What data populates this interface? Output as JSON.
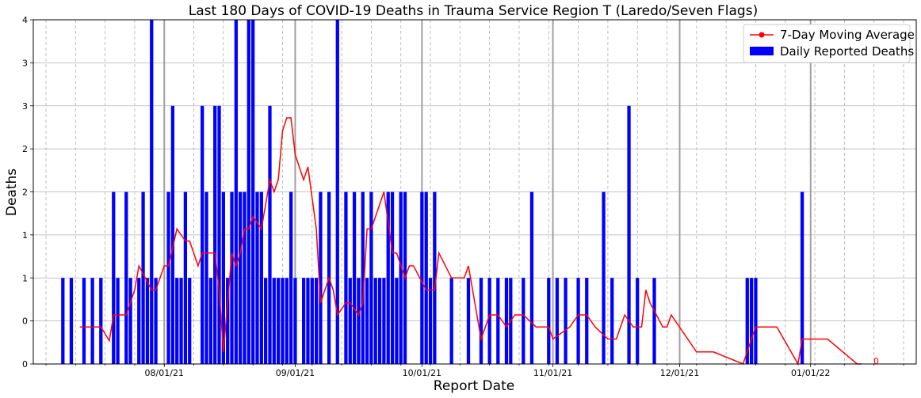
{
  "chart_data": {
    "type": "bar",
    "title": "Last 180 Days of COVID-19 Deaths in Trauma Service Region T (Laredo/Seven Flags)",
    "xlabel": "Report Date",
    "ylabel": "Deaths",
    "ylim": [
      0,
      4
    ],
    "xlim": [
      "2021-07-01",
      "2022-01-26"
    ],
    "yticks": [
      0,
      0.5,
      1,
      1.5,
      2,
      2.5,
      3,
      3.5,
      4
    ],
    "ytick_labels": [
      "0",
      "0",
      "1",
      "1",
      "2",
      "2",
      "3",
      "3",
      "4"
    ],
    "xticks": [
      "2021-08-01",
      "2021-09-01",
      "2021-10-01",
      "2021-11-01",
      "2021-12-01",
      "2022-01-01"
    ],
    "xtick_labels": [
      "08/01/21",
      "09/01/21",
      "10/01/21",
      "11/01/21",
      "12/01/21",
      "01/01/22"
    ],
    "grid": true,
    "legend_position": "top-right",
    "last_value_label": "0",
    "series": [
      {
        "name": "Daily Reported Deaths",
        "kind": "bar",
        "color": "#0000ff",
        "dates": [
          "2021-07-08",
          "2021-07-10",
          "2021-07-13",
          "2021-07-15",
          "2021-07-17",
          "2021-07-20",
          "2021-07-21",
          "2021-07-23",
          "2021-07-24",
          "2021-07-26",
          "2021-07-27",
          "2021-07-28",
          "2021-07-29",
          "2021-07-30",
          "2021-08-02",
          "2021-08-03",
          "2021-08-04",
          "2021-08-05",
          "2021-08-06",
          "2021-08-07",
          "2021-08-10",
          "2021-08-11",
          "2021-08-12",
          "2021-08-13",
          "2021-08-14",
          "2021-08-15",
          "2021-08-16",
          "2021-08-17",
          "2021-08-18",
          "2021-08-19",
          "2021-08-20",
          "2021-08-21",
          "2021-08-22",
          "2021-08-23",
          "2021-08-24",
          "2021-08-25",
          "2021-08-26",
          "2021-08-27",
          "2021-08-28",
          "2021-08-29",
          "2021-08-30",
          "2021-08-31",
          "2021-09-01",
          "2021-09-03",
          "2021-09-04",
          "2021-09-05",
          "2021-09-06",
          "2021-09-07",
          "2021-09-09",
          "2021-09-11",
          "2021-09-13",
          "2021-09-14",
          "2021-09-15",
          "2021-09-16",
          "2021-09-17",
          "2021-09-18",
          "2021-09-19",
          "2021-09-20",
          "2021-09-21",
          "2021-09-22",
          "2021-09-23",
          "2021-09-24",
          "2021-09-25",
          "2021-09-26",
          "2021-09-27",
          "2021-10-01",
          "2021-10-02",
          "2021-10-03",
          "2021-10-04",
          "2021-10-08",
          "2021-10-12",
          "2021-10-15",
          "2021-10-17",
          "2021-10-19",
          "2021-10-21",
          "2021-10-22",
          "2021-10-25",
          "2021-10-27",
          "2021-10-31",
          "2021-11-02",
          "2021-11-04",
          "2021-11-07",
          "2021-11-09",
          "2021-11-13",
          "2021-11-15",
          "2021-11-19",
          "2021-11-21",
          "2021-11-25",
          "2021-12-17",
          "2021-12-18",
          "2021-12-19",
          "2021-12-30"
        ],
        "values": [
          1,
          1,
          1,
          1,
          1,
          2,
          1,
          2,
          1,
          1,
          2,
          1,
          4,
          1,
          2,
          3,
          1,
          1,
          2,
          1,
          3,
          2,
          1,
          3,
          3,
          2,
          1,
          2,
          4,
          2,
          2,
          4,
          4,
          2,
          2,
          1,
          3,
          1,
          1,
          1,
          1,
          2,
          1,
          1,
          1,
          1,
          1,
          2,
          2,
          4,
          2,
          1,
          2,
          1,
          2,
          1,
          2,
          1,
          1,
          1,
          2,
          2,
          1,
          2,
          2,
          2,
          2,
          1,
          2,
          1,
          1,
          1,
          1,
          1,
          1,
          1,
          1,
          2,
          1,
          1,
          1,
          1,
          1,
          2,
          1,
          3,
          1,
          1,
          1,
          1,
          1,
          2
        ]
      },
      {
        "name": "7-Day Moving Average",
        "kind": "line",
        "color": "#ff0000",
        "dates": [
          "2021-07-12",
          "2021-07-17",
          "2021-07-19",
          "2021-07-20",
          "2021-07-23",
          "2021-07-25",
          "2021-07-26",
          "2021-07-29",
          "2021-07-30",
          "2021-08-01",
          "2021-08-02",
          "2021-08-04",
          "2021-08-06",
          "2021-08-07",
          "2021-08-09",
          "2021-08-10",
          "2021-08-13",
          "2021-08-14",
          "2021-08-15",
          "2021-08-17",
          "2021-08-18",
          "2021-08-19",
          "2021-08-20",
          "2021-08-21",
          "2021-08-22",
          "2021-08-24",
          "2021-08-26",
          "2021-08-27",
          "2021-08-28",
          "2021-08-29",
          "2021-08-30",
          "2021-08-31",
          "2021-09-01",
          "2021-09-03",
          "2021-09-04",
          "2021-09-06",
          "2021-09-07",
          "2021-09-09",
          "2021-09-10",
          "2021-09-11",
          "2021-09-13",
          "2021-09-14",
          "2021-09-16",
          "2021-09-17",
          "2021-09-18",
          "2021-09-19",
          "2021-09-20",
          "2021-09-22",
          "2021-09-24",
          "2021-09-25",
          "2021-09-27",
          "2021-09-28",
          "2021-09-29",
          "2021-10-02",
          "2021-10-04",
          "2021-10-05",
          "2021-10-08",
          "2021-10-11",
          "2021-10-12",
          "2021-10-15",
          "2021-10-17",
          "2021-10-19",
          "2021-10-21",
          "2021-10-23",
          "2021-10-25",
          "2021-10-28",
          "2021-10-31",
          "2021-11-01",
          "2021-11-05",
          "2021-11-07",
          "2021-11-09",
          "2021-11-11",
          "2021-11-14",
          "2021-11-16",
          "2021-11-18",
          "2021-11-20",
          "2021-11-22",
          "2021-11-23",
          "2021-11-24",
          "2021-11-27",
          "2021-11-28",
          "2021-11-29",
          "2021-12-05",
          "2021-12-09",
          "2021-12-16",
          "2021-12-18",
          "2021-12-19",
          "2021-12-24",
          "2021-12-29",
          "2021-12-30",
          "2022-01-05",
          "2022-01-12",
          "2022-01-13"
        ],
        "values": [
          0.43,
          0.43,
          0.27,
          0.57,
          0.57,
          0.86,
          1.14,
          0.86,
          0.86,
          1.14,
          1.14,
          1.57,
          1.43,
          1.43,
          1.14,
          1.29,
          1.29,
          0.86,
          0.14,
          1.29,
          1.14,
          1.29,
          1.57,
          1.57,
          1.71,
          1.57,
          2.14,
          2.0,
          2.14,
          2.71,
          2.86,
          2.86,
          2.43,
          2.14,
          2.29,
          1.57,
          0.71,
          1.0,
          0.86,
          0.57,
          0.71,
          0.71,
          0.57,
          0.71,
          1.57,
          1.57,
          1.71,
          2.0,
          1.29,
          1.29,
          1.0,
          1.14,
          1.14,
          0.86,
          0.86,
          1.29,
          1.0,
          1.0,
          1.14,
          0.29,
          0.57,
          0.57,
          0.43,
          0.57,
          0.57,
          0.43,
          0.43,
          0.29,
          0.43,
          0.57,
          0.57,
          0.43,
          0.29,
          0.29,
          0.57,
          0.43,
          0.43,
          0.86,
          0.71,
          0.43,
          0.43,
          0.57,
          0.14,
          0.14,
          0.0,
          0.29,
          0.43,
          0.43,
          0.0,
          0.29,
          0.29,
          0.0,
          0.0
        ]
      }
    ]
  }
}
